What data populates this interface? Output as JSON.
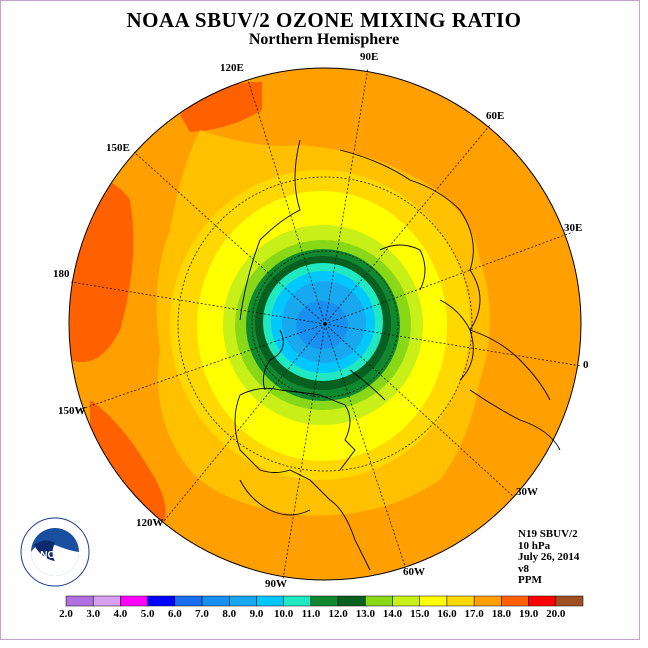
{
  "title": "NOAA SBUV/2 OZONE MIXING RATIO",
  "subtitle": "Northern Hemisphere",
  "longitude_labels": {
    "e90": "90E",
    "e60": "60E",
    "e30": "30E",
    "zero": "0",
    "w30": "30W",
    "w60": "60W",
    "w90": "90W",
    "w120": "120W",
    "w150": "150W",
    "d180": "180",
    "e150": "150E",
    "e120": "120E"
  },
  "info": {
    "satellite": "N19 SBUV/2",
    "level": "10 hPa",
    "date": "July 26, 2014",
    "version": "v8",
    "units": "PPM"
  },
  "logo": {
    "text": "NOAA"
  },
  "colorbar": {
    "ticks": [
      "2.0",
      "3.0",
      "4.0",
      "5.0",
      "6.0",
      "7.0",
      "8.0",
      "9.0",
      "10.0",
      "11.0",
      "12.0",
      "13.0",
      "14.0",
      "15.0",
      "16.0",
      "17.0",
      "18.0",
      "19.0",
      "20.0"
    ],
    "colors": [
      "#b070e0",
      "#d8a0f0",
      "#ff00ff",
      "#0000ff",
      "#1870f0",
      "#1890f0",
      "#18a8f0",
      "#00c8ff",
      "#20e8c0",
      "#108830",
      "#086020",
      "#88d818",
      "#c8f018",
      "#ffff00",
      "#ffd800",
      "#ffa000",
      "#ff6000",
      "#ff0000",
      "#a05020"
    ]
  }
}
